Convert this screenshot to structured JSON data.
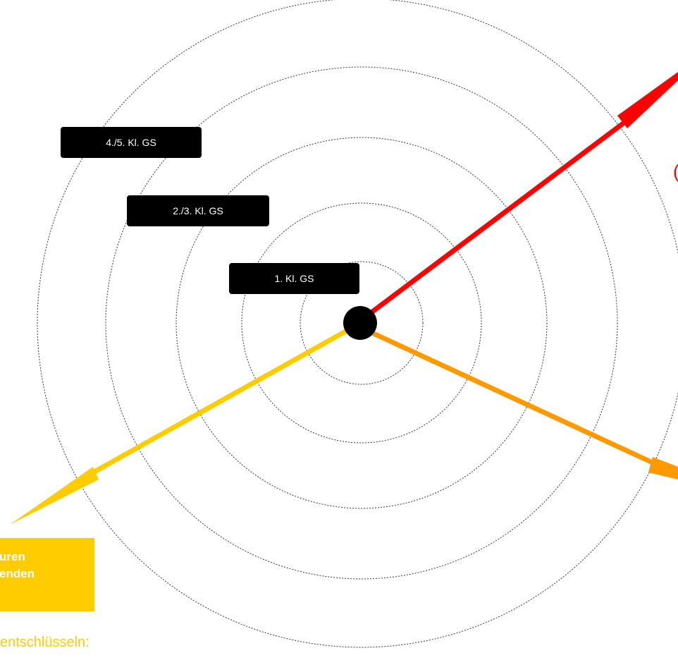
{
  "rings": {
    "labels": [
      "1. Kl. GS",
      "2./3. Kl. GS",
      "4./5. Kl. GS"
    ]
  },
  "axes": {
    "red": {
      "color": "#ff0000"
    },
    "orange": {
      "color": "#ff9900"
    },
    "yellow": {
      "color": "#ffcc00"
    }
  },
  "center": {
    "color": "#000000"
  },
  "yellow_box": {
    "line1": "uren",
    "line2": "enden",
    "background": "#ffcc00"
  },
  "yellow_caption": "entschlüsseln:",
  "red_fragment": "("
}
